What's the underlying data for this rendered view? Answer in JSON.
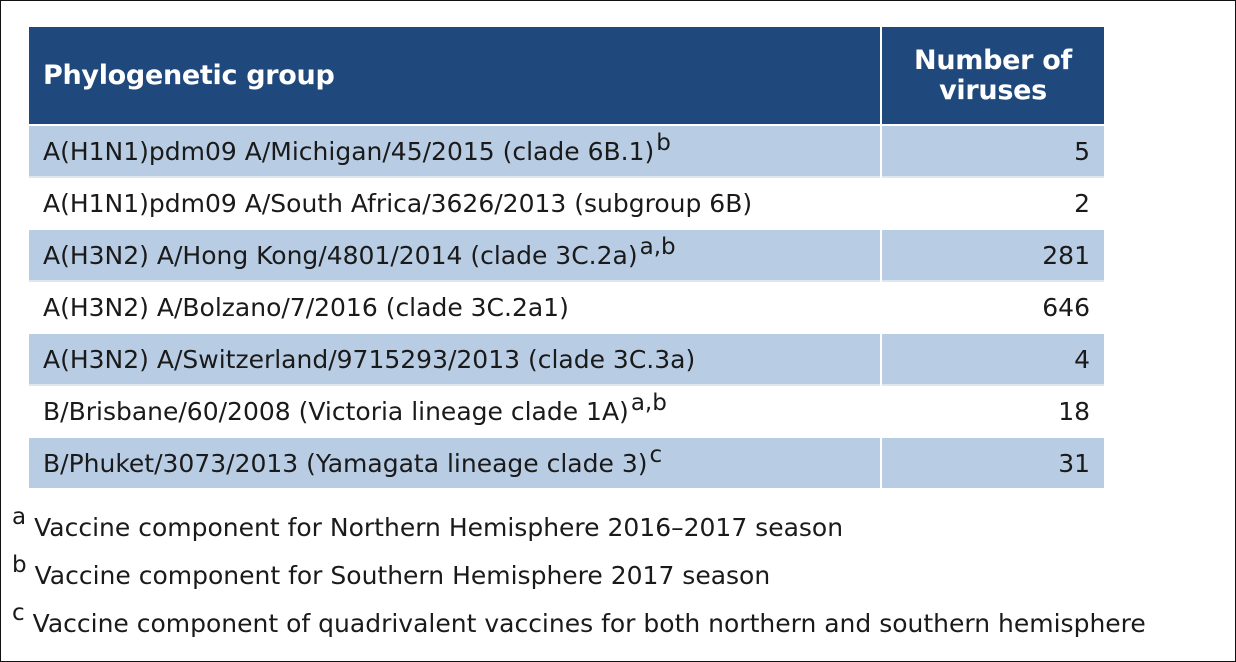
{
  "table": {
    "headers": {
      "group": "Phylogenetic group",
      "count_line1": "Number of",
      "count_line2": "viruses"
    },
    "rows": [
      {
        "group": "A(H1N1)pdm09 A/Michigan/45/2015 (clade 6B.1)",
        "sup": "b",
        "count": "5"
      },
      {
        "group": "A(H1N1)pdm09 A/South Africa/3626/2013 (subgroup 6B)",
        "sup": "",
        "count": "2"
      },
      {
        "group": "A(H3N2) A/Hong Kong/4801/2014 (clade 3C.2a)",
        "sup": "a,b",
        "count": "281"
      },
      {
        "group": "A(H3N2) A/Bolzano/7/2016 (clade 3C.2a1)",
        "sup": "",
        "count": "646"
      },
      {
        "group": "A(H3N2) A/Switzerland/9715293/2013 (clade 3C.3a)",
        "sup": "",
        "count": "4"
      },
      {
        "group": "B/Brisbane/60/2008 (Victoria lineage clade 1A)",
        "sup": "a,b",
        "count": "18"
      },
      {
        "group": "B/Phuket/3073/2013 (Yamagata lineage clade 3)",
        "sup": "c",
        "count": "31"
      }
    ]
  },
  "footnotes": [
    {
      "mark": "a",
      "text": "Vaccine component for Northern Hemisphere 2016–2017 season"
    },
    {
      "mark": "b",
      "text": "Vaccine component for Southern Hemisphere 2017 season"
    },
    {
      "mark": "c",
      "text": "Vaccine component of quadrivalent vaccines for both northern and southern hemisphere"
    }
  ],
  "colors": {
    "header_bg": "#1f497d",
    "row_shade": "#b8cce4",
    "row_plain": "#ffffff"
  }
}
